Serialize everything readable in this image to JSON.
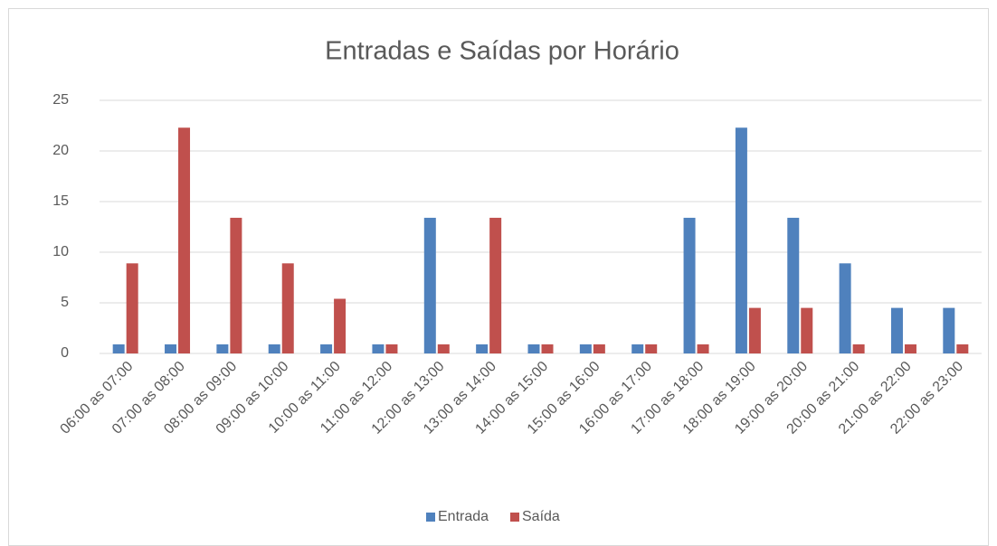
{
  "chart_data": {
    "type": "bar",
    "title": "Entradas e Saídas por Horário",
    "categories": [
      "06:00 as 07:00",
      "07:00 as 08:00",
      "08:00 as 09:00",
      "09:00 as 10:00",
      "10:00 as 11:00",
      "11:00 as 12:00",
      "12:00 as 13:00",
      "13:00 as 14:00",
      "14:00 as 15:00",
      "15:00 as 16:00",
      "16:00 as 17:00",
      "17:00 as 18:00",
      "18:00 as 19:00",
      "19:00 as 20:00",
      "20:00 as 21:00",
      "21:00 as 22:00",
      "22:00 as 23:00"
    ],
    "series": [
      {
        "name": "Entrada",
        "color": "#4f81bd",
        "values": [
          0.9,
          0.9,
          0.9,
          0.9,
          0.9,
          0.9,
          13.4,
          0.9,
          0.9,
          0.9,
          0.9,
          13.4,
          22.3,
          13.4,
          8.9,
          4.5,
          4.5
        ]
      },
      {
        "name": "Saída",
        "color": "#c0504d",
        "values": [
          8.9,
          22.3,
          13.4,
          8.9,
          5.4,
          0.9,
          0.9,
          13.4,
          0.9,
          0.9,
          0.9,
          0.9,
          4.5,
          4.5,
          0.9,
          0.9,
          0.9
        ]
      }
    ],
    "ylim": [
      0,
      25
    ],
    "yticks": [
      0,
      5,
      10,
      15,
      20,
      25
    ],
    "grid": true,
    "legend": "bottom"
  }
}
